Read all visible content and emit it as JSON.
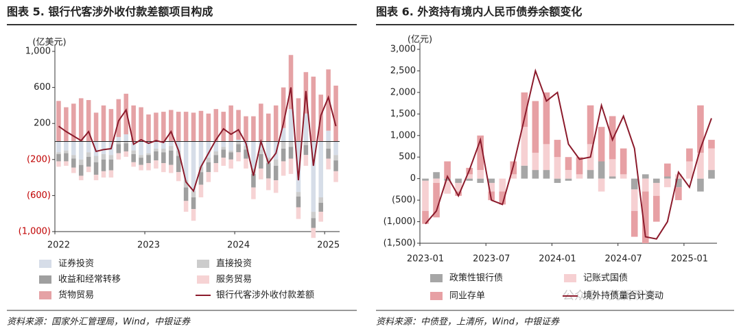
{
  "chart_data": [
    {
      "type": "bar",
      "stacked": true,
      "title": "图表 5. 银行代客涉外收付款差额项目构成",
      "y_label": "(亿美元)",
      "source": "资料来源：国家外汇管理局，Wind，中银证券",
      "categories": [
        "2022",
        null,
        null,
        null,
        null,
        null,
        null,
        null,
        null,
        null,
        null,
        null,
        "2023",
        null,
        null,
        null,
        null,
        null,
        null,
        null,
        null,
        null,
        null,
        null,
        "2024",
        null,
        null,
        null,
        null,
        null,
        null,
        null,
        null,
        null,
        null,
        null,
        "2025",
        null
      ],
      "ylim": [
        -1000,
        1000
      ],
      "yticks": [
        {
          "value": 1000,
          "label": "1,000"
        },
        600,
        200,
        {
          "value": -200,
          "label": "(200)"
        },
        {
          "value": -600,
          "label": "(600)"
        },
        {
          "value": -1000,
          "label": "(1,000)"
        }
      ],
      "negative_tick_color": "#c00000",
      "zero_line": true,
      "series": [
        {
          "name": "证券投资",
          "color": "#d6dde8",
          "values": [
            -120,
            -100,
            -150,
            -200,
            -120,
            -160,
            -140,
            -150,
            50,
            80,
            -100,
            -150,
            -130,
            -80,
            -80,
            -50,
            -100,
            -430,
            -550,
            -280,
            -180,
            -110,
            -60,
            -100,
            20,
            -50,
            -300,
            -90,
            -180,
            -200,
            150,
            360,
            -560,
            310,
            -780,
            -620,
            120,
            -150
          ]
        },
        {
          "name": "直接投资",
          "color": "#cccccc",
          "values": [
            -20,
            -30,
            -40,
            -60,
            -50,
            -70,
            -60,
            -50,
            -30,
            -20,
            -40,
            -30,
            -20,
            -30,
            -40,
            -50,
            -60,
            -80,
            -70,
            -60,
            -50,
            -40,
            -30,
            -20,
            -30,
            -40,
            -60,
            -50,
            -60,
            -70,
            -80,
            -60,
            -50,
            -40,
            -70,
            -60,
            -80,
            -60
          ]
        },
        {
          "name": "收益和经常转移",
          "color": "#9f9f9f",
          "values": [
            -80,
            -90,
            -100,
            -120,
            -110,
            -140,
            -130,
            -120,
            -100,
            -90,
            -90,
            -80,
            -90,
            -100,
            -120,
            -160,
            -180,
            -150,
            -130,
            -140,
            -110,
            -90,
            -90,
            -80,
            -90,
            -100,
            -150,
            -160,
            -170,
            -160,
            -140,
            -130,
            -120,
            -110,
            -110,
            -100,
            -110,
            -120
          ]
        },
        {
          "name": "服务贸易",
          "color": "#f6d3d4",
          "values": [
            -60,
            -50,
            -60,
            -50,
            -60,
            -60,
            -70,
            -80,
            -70,
            -60,
            -50,
            -60,
            -80,
            -90,
            -100,
            -90,
            -100,
            -120,
            -130,
            -140,
            -110,
            -100,
            -90,
            -100,
            -100,
            -110,
            -130,
            -120,
            -130,
            -140,
            -160,
            -170,
            -130,
            -120,
            -110,
            -110,
            -120,
            -120
          ]
        },
        {
          "name": "货物贸易",
          "color": "#e5a2a5",
          "values": [
            450,
            380,
            420,
            480,
            460,
            320,
            400,
            360,
            420,
            450,
            400,
            380,
            300,
            320,
            330,
            350,
            330,
            330,
            320,
            340,
            310,
            360,
            330,
            400,
            330,
            280,
            280,
            420,
            310,
            400,
            450,
            600,
            480,
            460,
            720,
            520,
            680,
            620
          ]
        },
        {
          "name": "银行代客涉外收付款差额",
          "type": "line",
          "color": "#8b1a2b",
          "values": [
            170,
            110,
            60,
            10,
            110,
            -110,
            -90,
            -80,
            230,
            350,
            -30,
            20,
            -20,
            10,
            -10,
            110,
            -100,
            -450,
            -550,
            -280,
            -130,
            20,
            140,
            80,
            130,
            -20,
            -380,
            0,
            -240,
            -130,
            200,
            600,
            -430,
            560,
            -270,
            290,
            490,
            170
          ]
        }
      ]
    },
    {
      "type": "bar",
      "stacked": true,
      "title": "图表 6. 外资持有境内人民币债券余额变化",
      "y_label": "(亿元)",
      "source": "资料来源：中债登，上清所，Wind，中银证券",
      "categories": [
        "2023-01",
        null,
        null,
        null,
        null,
        null,
        "2023-07",
        null,
        null,
        null,
        null,
        null,
        "2024-01",
        null,
        null,
        null,
        null,
        null,
        "2024-07",
        null,
        null,
        null,
        null,
        null,
        "2025-01",
        null,
        null
      ],
      "ylim": [
        -1500,
        3000
      ],
      "yticks": [
        {
          "value": 3000,
          "label": "3,000"
        },
        {
          "value": 2500,
          "label": "2,500"
        },
        {
          "value": 2000,
          "label": "2,000"
        },
        {
          "value": 1500,
          "label": "1,500"
        },
        {
          "value": 1000,
          "label": "1,000"
        },
        500,
        0,
        {
          "value": -500,
          "label": "(500)"
        },
        {
          "value": -1000,
          "label": "(1,000)"
        },
        {
          "value": -1500,
          "label": "(1,500)"
        }
      ],
      "series": [
        {
          "name": "政策性银行债",
          "color": "#a6a6a6",
          "values": [
            -50,
            150,
            -50,
            -100,
            -50,
            -100,
            -100,
            0,
            0,
            300,
            200,
            200,
            -100,
            -50,
            0,
            200,
            400,
            50,
            0,
            -250,
            100,
            -100,
            50,
            -200,
            0,
            -300,
            200
          ]
        },
        {
          "name": "记账式国债",
          "color": "#f6d0d2",
          "values": [
            -700,
            -100,
            -300,
            -200,
            100,
            200,
            -200,
            -300,
            100,
            900,
            400,
            600,
            500,
            200,
            100,
            600,
            -300,
            400,
            100,
            -500,
            -300,
            -300,
            -200,
            100,
            400,
            600,
            500
          ]
        },
        {
          "name": "同业存单",
          "color": "#e7a0a4",
          "values": [
            -300,
            -800,
            400,
            -100,
            150,
            800,
            -200,
            -300,
            300,
            800,
            1200,
            1200,
            400,
            300,
            400,
            900,
            800,
            1000,
            600,
            -600,
            -1200,
            -600,
            300,
            -300,
            300,
            1100,
            200
          ]
        },
        {
          "name": "境外持债量合计变动",
          "type": "line",
          "color": "#8b1a2b",
          "values": [
            -1050,
            -750,
            50,
            -400,
            200,
            900,
            -500,
            -600,
            300,
            1400,
            2500,
            1800,
            2000,
            800,
            450,
            500,
            1700,
            900,
            1450,
            700,
            -1350,
            -1400,
            -1000,
            150,
            -200,
            700,
            1400
          ]
        }
      ]
    }
  ],
  "watermark": "公众号 · 芃澜观涛"
}
